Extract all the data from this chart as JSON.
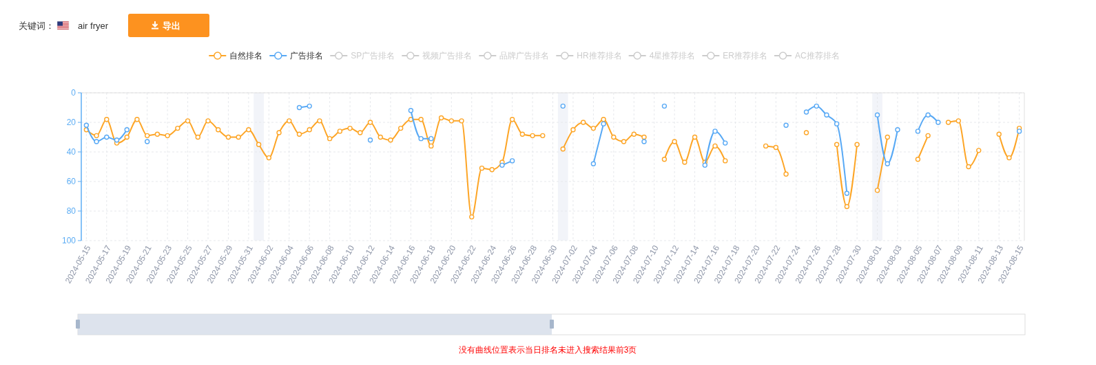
{
  "chart_data": {
    "type": "line",
    "x": [
      "2024-05-15",
      "2024-05-16",
      "2024-05-17",
      "2024-05-18",
      "2024-05-19",
      "2024-05-20",
      "2024-05-21",
      "2024-05-22",
      "2024-05-23",
      "2024-05-24",
      "2024-05-25",
      "2024-05-26",
      "2024-05-27",
      "2024-05-28",
      "2024-05-29",
      "2024-05-30",
      "2024-05-31",
      "2024-06-01",
      "2024-06-02",
      "2024-06-03",
      "2024-06-04",
      "2024-06-05",
      "2024-06-06",
      "2024-06-07",
      "2024-06-08",
      "2024-06-09",
      "2024-06-10",
      "2024-06-11",
      "2024-06-12",
      "2024-06-13",
      "2024-06-14",
      "2024-06-15",
      "2024-06-16",
      "2024-06-17",
      "2024-06-18",
      "2024-06-19",
      "2024-06-20",
      "2024-06-21",
      "2024-06-22",
      "2024-06-23",
      "2024-06-24",
      "2024-06-25",
      "2024-06-26",
      "2024-06-27",
      "2024-06-28",
      "2024-06-29",
      "2024-06-30",
      "2024-07-01",
      "2024-07-02",
      "2024-07-03",
      "2024-07-04",
      "2024-07-05",
      "2024-07-06",
      "2024-07-07",
      "2024-07-08",
      "2024-07-09",
      "2024-07-10",
      "2024-07-11",
      "2024-07-12",
      "2024-07-13",
      "2024-07-14",
      "2024-07-15",
      "2024-07-16",
      "2024-07-17",
      "2024-07-18",
      "2024-07-19",
      "2024-07-20",
      "2024-07-21",
      "2024-07-22",
      "2024-07-23",
      "2024-07-24",
      "2024-07-25",
      "2024-07-26",
      "2024-07-27",
      "2024-07-28",
      "2024-07-29",
      "2024-07-30",
      "2024-07-31",
      "2024-08-01",
      "2024-08-02",
      "2024-08-03",
      "2024-08-04",
      "2024-08-05",
      "2024-08-06",
      "2024-08-07",
      "2024-08-08",
      "2024-08-09",
      "2024-08-10",
      "2024-08-11",
      "2024-08-12",
      "2024-08-13",
      "2024-08-14",
      "2024-08-15"
    ],
    "xlim": [
      "2024-05-14T12:00",
      "2024-08-15T12:00"
    ],
    "xticks": [
      "2024-05-15",
      "2024-05-17",
      "2024-05-19",
      "2024-05-21",
      "2024-05-23",
      "2024-05-25",
      "2024-05-27",
      "2024-05-29",
      "2024-05-31",
      "2024-06-02",
      "2024-06-04",
      "2024-06-06",
      "2024-06-08",
      "2024-06-10",
      "2024-06-12",
      "2024-06-14",
      "2024-06-16",
      "2024-06-18",
      "2024-06-20",
      "2024-06-22",
      "2024-06-24",
      "2024-06-26",
      "2024-06-28",
      "2024-06-30",
      "2024-07-02",
      "2024-07-04",
      "2024-07-06",
      "2024-07-08",
      "2024-07-10",
      "2024-07-12",
      "2024-07-14",
      "2024-07-16",
      "2024-07-18",
      "2024-07-20",
      "2024-07-22",
      "2024-07-24",
      "2024-07-26",
      "2024-07-28",
      "2024-07-30",
      "2024-08-01",
      "2024-08-03",
      "2024-08-05",
      "2024-08-07",
      "2024-08-09",
      "2024-08-11",
      "2024-08-13",
      "2024-08-15"
    ],
    "ylim": [
      100,
      0
    ],
    "yticks": [
      0,
      20,
      40,
      60,
      80,
      100
    ],
    "grid": true,
    "legend": "top",
    "marker": "circle",
    "bands": [
      {
        "axis": "x",
        "from": "2024-05-31T12:00",
        "to": "2024-06-01T12:00",
        "color": "#f2f4f9"
      },
      {
        "axis": "x",
        "from": "2024-06-30T12:00",
        "to": "2024-07-01T12:00",
        "color": "#f2f4f9"
      },
      {
        "axis": "x",
        "from": "2024-07-31T12:00",
        "to": "2024-08-01T12:00",
        "color": "#f2f4f9"
      }
    ],
    "series": [
      {
        "name": "自然排名",
        "color": "#fda526",
        "values": [
          25,
          29,
          18,
          34,
          30,
          18,
          29,
          28,
          29,
          24,
          19,
          30,
          19,
          25,
          30,
          30,
          25,
          35,
          44,
          27,
          19,
          28,
          25,
          19,
          31,
          26,
          24,
          27,
          20,
          30,
          32,
          24,
          18,
          18,
          36,
          17,
          19,
          19,
          84,
          51,
          52,
          47,
          18,
          28,
          29,
          29,
          null,
          38,
          25,
          20,
          24,
          18,
          30,
          33,
          28,
          30,
          null,
          45,
          33,
          47,
          30,
          47,
          36,
          46,
          null,
          null,
          null,
          36,
          37,
          55,
          null,
          27,
          null,
          null,
          35,
          77,
          35,
          null,
          66,
          30,
          null,
          null,
          45,
          29,
          null,
          20,
          19,
          50,
          39,
          null,
          28,
          44,
          24
        ]
      },
      {
        "name": "广告排名",
        "color": "#58a9f5",
        "values": [
          22,
          33,
          30,
          32,
          25,
          null,
          33,
          null,
          null,
          null,
          null,
          null,
          null,
          null,
          null,
          null,
          null,
          null,
          null,
          null,
          null,
          10,
          9,
          null,
          null,
          null,
          null,
          null,
          32,
          null,
          null,
          null,
          12,
          31,
          31,
          null,
          null,
          null,
          null,
          null,
          null,
          49,
          46,
          null,
          null,
          null,
          null,
          9,
          null,
          null,
          48,
          21,
          null,
          null,
          null,
          33,
          null,
          9,
          null,
          null,
          null,
          49,
          26,
          34,
          null,
          null,
          null,
          null,
          null,
          22,
          null,
          13,
          9,
          15,
          21,
          68,
          null,
          null,
          15,
          48,
          25,
          null,
          26,
          15,
          20,
          null,
          null,
          null,
          null,
          null,
          null,
          null,
          26
        ]
      },
      {
        "name": "SP广告排名",
        "color": "#cccccc",
        "values": [
          null,
          null,
          null,
          null,
          null,
          null,
          null,
          null,
          null,
          null,
          null,
          null,
          null,
          null,
          null,
          null,
          null,
          null,
          null,
          null,
          null,
          null,
          null,
          null,
          null,
          null,
          null,
          null,
          null,
          null,
          null,
          null,
          null,
          null,
          null,
          null,
          null,
          null,
          null,
          null,
          null,
          null,
          null,
          null,
          null,
          null,
          null,
          null,
          null,
          null,
          null,
          null,
          null,
          null,
          null,
          null,
          null,
          null,
          null,
          null,
          null,
          null,
          null,
          null,
          null,
          null,
          null,
          null,
          null,
          null,
          null,
          null,
          null,
          null,
          null,
          null,
          null,
          null,
          null,
          null,
          null,
          null,
          null,
          null,
          null,
          null,
          null,
          null,
          null,
          null,
          null,
          null,
          null
        ]
      },
      {
        "name": "视频广告排名",
        "color": "#cccccc",
        "values": [
          null,
          null,
          null,
          null,
          null,
          null,
          null,
          null,
          null,
          null,
          null,
          null,
          null,
          null,
          null,
          null,
          null,
          null,
          null,
          null,
          null,
          null,
          null,
          null,
          null,
          null,
          null,
          null,
          null,
          null,
          null,
          null,
          null,
          null,
          null,
          null,
          null,
          null,
          null,
          null,
          null,
          null,
          null,
          null,
          null,
          null,
          null,
          null,
          null,
          null,
          null,
          null,
          null,
          null,
          null,
          null,
          null,
          null,
          null,
          null,
          null,
          null,
          null,
          null,
          null,
          null,
          null,
          null,
          null,
          null,
          null,
          null,
          null,
          null,
          null,
          null,
          null,
          null,
          null,
          null,
          null,
          null,
          null,
          null,
          null,
          null,
          null,
          null,
          null,
          null,
          null,
          null,
          null
        ]
      },
      {
        "name": "品牌广告排名",
        "color": "#cccccc",
        "values": [
          null,
          null,
          null,
          null,
          null,
          null,
          null,
          null,
          null,
          null,
          null,
          null,
          null,
          null,
          null,
          null,
          null,
          null,
          null,
          null,
          null,
          null,
          null,
          null,
          null,
          null,
          null,
          null,
          null,
          null,
          null,
          null,
          null,
          null,
          null,
          null,
          null,
          null,
          null,
          null,
          null,
          null,
          null,
          null,
          null,
          null,
          null,
          null,
          null,
          null,
          null,
          null,
          null,
          null,
          null,
          null,
          null,
          null,
          null,
          null,
          null,
          null,
          null,
          null,
          null,
          null,
          null,
          null,
          null,
          null,
          null,
          null,
          null,
          null,
          null,
          null,
          null,
          null,
          null,
          null,
          null,
          null,
          null,
          null,
          null,
          null,
          null,
          null,
          null,
          null,
          null,
          null,
          null
        ]
      },
      {
        "name": "HR推荐排名",
        "color": "#cccccc",
        "values": [
          null,
          null,
          null,
          null,
          null,
          null,
          null,
          null,
          null,
          null,
          null,
          null,
          null,
          null,
          null,
          null,
          null,
          null,
          null,
          null,
          null,
          null,
          null,
          null,
          null,
          null,
          null,
          null,
          null,
          null,
          null,
          null,
          null,
          null,
          null,
          null,
          null,
          null,
          null,
          null,
          null,
          null,
          null,
          null,
          null,
          null,
          null,
          null,
          null,
          null,
          null,
          null,
          null,
          null,
          null,
          null,
          null,
          null,
          null,
          null,
          null,
          null,
          null,
          null,
          null,
          null,
          null,
          null,
          null,
          null,
          null,
          null,
          null,
          null,
          null,
          null,
          null,
          null,
          null,
          null,
          null,
          null,
          null,
          null,
          null,
          null,
          null,
          null,
          null,
          null,
          null,
          null,
          null
        ]
      },
      {
        "name": "4星推荐排名",
        "color": "#cccccc",
        "values": [
          null,
          null,
          null,
          null,
          null,
          null,
          null,
          null,
          null,
          null,
          null,
          null,
          null,
          null,
          null,
          null,
          null,
          null,
          null,
          null,
          null,
          null,
          null,
          null,
          null,
          null,
          null,
          null,
          null,
          null,
          null,
          null,
          null,
          null,
          null,
          null,
          null,
          null,
          null,
          null,
          null,
          null,
          null,
          null,
          null,
          null,
          null,
          null,
          null,
          null,
          null,
          null,
          null,
          null,
          null,
          null,
          null,
          null,
          null,
          null,
          null,
          null,
          null,
          null,
          null,
          null,
          null,
          null,
          null,
          null,
          null,
          null,
          null,
          null,
          null,
          null,
          null,
          null,
          null,
          null,
          null,
          null,
          null,
          null,
          null,
          null,
          null,
          null,
          null,
          null,
          null,
          null,
          null
        ]
      },
      {
        "name": "ER推荐排名",
        "color": "#cccccc",
        "values": [
          null,
          null,
          null,
          null,
          null,
          null,
          null,
          null,
          null,
          null,
          null,
          null,
          null,
          null,
          null,
          null,
          null,
          null,
          null,
          null,
          null,
          null,
          null,
          null,
          null,
          null,
          null,
          null,
          null,
          null,
          null,
          null,
          null,
          null,
          null,
          null,
          null,
          null,
          null,
          null,
          null,
          null,
          null,
          null,
          null,
          null,
          null,
          null,
          null,
          null,
          null,
          null,
          null,
          null,
          null,
          null,
          null,
          null,
          null,
          null,
          null,
          null,
          null,
          null,
          null,
          null,
          null,
          null,
          null,
          null,
          null,
          null,
          null,
          null,
          null,
          null,
          null,
          null,
          null,
          null,
          null,
          null,
          null,
          null,
          null,
          null,
          null,
          null,
          null,
          null,
          null,
          null,
          null
        ]
      },
      {
        "name": "AC推荐排名",
        "color": "#cccccc",
        "values": [
          null,
          null,
          null,
          null,
          null,
          null,
          null,
          null,
          null,
          null,
          null,
          null,
          null,
          null,
          null,
          null,
          null,
          null,
          null,
          null,
          null,
          null,
          null,
          null,
          null,
          null,
          null,
          null,
          null,
          null,
          null,
          null,
          null,
          null,
          null,
          null,
          null,
          null,
          null,
          null,
          null,
          null,
          null,
          null,
          null,
          null,
          null,
          null,
          null,
          null,
          null,
          null,
          null,
          null,
          null,
          null,
          null,
          null,
          null,
          null,
          null,
          null,
          null,
          null,
          null,
          null,
          null,
          null,
          null,
          null,
          null,
          null,
          null,
          null,
          null,
          null,
          null,
          null,
          null,
          null,
          null,
          null,
          null,
          null,
          null,
          null,
          null,
          null,
          null,
          null,
          null,
          null,
          null
        ]
      }
    ],
    "annotations": [
      "关键词：",
      "air fryer",
      "导出",
      "没有曲线位置表示当日排名未进入搜索结果前3页"
    ]
  }
}
